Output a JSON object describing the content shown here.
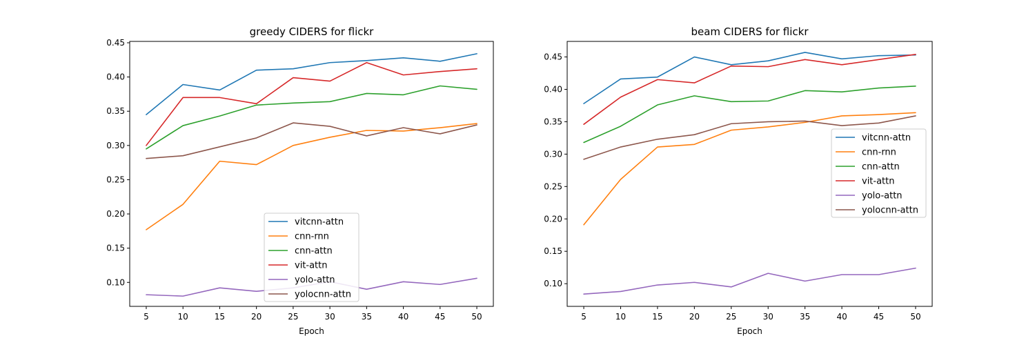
{
  "chart_data": [
    {
      "type": "line",
      "title": "greedy CIDERS for flickr",
      "xlabel": "Epoch",
      "ylabel": "",
      "x": [
        5,
        10,
        15,
        20,
        25,
        30,
        35,
        40,
        45,
        50
      ],
      "xlim": [
        2.75,
        52.25
      ],
      "ylim": [
        0.065,
        0.452
      ],
      "xticks": [
        "5",
        "10",
        "15",
        "20",
        "25",
        "30",
        "35",
        "40",
        "45",
        "50"
      ],
      "yticks": [
        0.1,
        0.15,
        0.2,
        0.25,
        0.3,
        0.35,
        0.4,
        0.45
      ],
      "ytick_labels": [
        "0.10",
        "0.15",
        "0.20",
        "0.25",
        "0.30",
        "0.35",
        "0.40",
        "0.45"
      ],
      "grid": false,
      "legend_position": "lower-center",
      "series": [
        {
          "name": "vitcnn-attn",
          "color": "#1f77b4",
          "values": [
            0.345,
            0.389,
            0.381,
            0.41,
            0.412,
            0.421,
            0.424,
            0.428,
            0.423,
            0.434
          ]
        },
        {
          "name": "cnn-rnn",
          "color": "#ff7f0e",
          "values": [
            0.177,
            0.214,
            0.277,
            0.272,
            0.3,
            0.312,
            0.322,
            0.321,
            0.326,
            0.332
          ]
        },
        {
          "name": "cnn-attn",
          "color": "#2ca02c",
          "values": [
            0.295,
            0.329,
            0.343,
            0.359,
            0.362,
            0.364,
            0.376,
            0.374,
            0.387,
            0.382
          ]
        },
        {
          "name": "vit-attn",
          "color": "#d62728",
          "values": [
            0.3,
            0.37,
            0.37,
            0.361,
            0.399,
            0.394,
            0.421,
            0.403,
            0.408,
            0.412
          ]
        },
        {
          "name": "yolo-attn",
          "color": "#9467bd",
          "values": [
            0.082,
            0.08,
            0.092,
            0.087,
            0.092,
            0.101,
            0.09,
            0.101,
            0.097,
            0.106
          ]
        },
        {
          "name": "yolocnn-attn",
          "color": "#8c564b",
          "values": [
            0.281,
            0.285,
            0.298,
            0.311,
            0.333,
            0.328,
            0.314,
            0.326,
            0.317,
            0.33
          ]
        }
      ]
    },
    {
      "type": "line",
      "title": "beam CIDERS for flickr",
      "xlabel": "Epoch",
      "ylabel": "",
      "x": [
        5,
        10,
        15,
        20,
        25,
        30,
        35,
        40,
        45,
        50
      ],
      "xlim": [
        2.75,
        52.25
      ],
      "ylim": [
        0.065,
        0.474
      ],
      "xticks": [
        "5",
        "10",
        "15",
        "20",
        "25",
        "30",
        "35",
        "40",
        "45",
        "50"
      ],
      "yticks": [
        0.1,
        0.15,
        0.2,
        0.25,
        0.3,
        0.35,
        0.4,
        0.45
      ],
      "ytick_labels": [
        "0.10",
        "0.15",
        "0.20",
        "0.25",
        "0.30",
        "0.35",
        "0.40",
        "0.45"
      ],
      "grid": false,
      "legend_position": "center-right",
      "series": [
        {
          "name": "vitcnn-attn",
          "color": "#1f77b4",
          "values": [
            0.378,
            0.416,
            0.419,
            0.45,
            0.438,
            0.444,
            0.457,
            0.447,
            0.452,
            0.453
          ]
        },
        {
          "name": "cnn-rnn",
          "color": "#ff7f0e",
          "values": [
            0.191,
            0.261,
            0.311,
            0.315,
            0.337,
            0.342,
            0.349,
            0.359,
            0.361,
            0.364
          ]
        },
        {
          "name": "cnn-attn",
          "color": "#2ca02c",
          "values": [
            0.318,
            0.343,
            0.376,
            0.39,
            0.381,
            0.382,
            0.398,
            0.396,
            0.402,
            0.405
          ]
        },
        {
          "name": "vit-attn",
          "color": "#d62728",
          "values": [
            0.346,
            0.388,
            0.415,
            0.41,
            0.436,
            0.435,
            0.446,
            0.438,
            0.446,
            0.454
          ]
        },
        {
          "name": "yolo-attn",
          "color": "#9467bd",
          "values": [
            0.084,
            0.088,
            0.098,
            0.102,
            0.095,
            0.116,
            0.104,
            0.114,
            0.114,
            0.124
          ]
        },
        {
          "name": "yolocnn-attn",
          "color": "#8c564b",
          "values": [
            0.292,
            0.311,
            0.323,
            0.33,
            0.347,
            0.35,
            0.351,
            0.344,
            0.348,
            0.359
          ]
        }
      ]
    }
  ]
}
